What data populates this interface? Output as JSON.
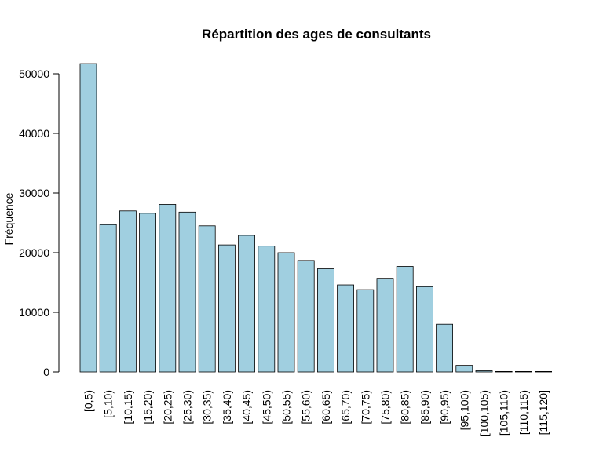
{
  "chart_data": {
    "type": "bar",
    "title": "Répartition des ages de consultants",
    "xlabel": "",
    "ylabel": "Fréquence",
    "ylim": [
      0,
      52000
    ],
    "yticks": [
      0,
      10000,
      20000,
      30000,
      40000,
      50000
    ],
    "ytick_labels": [
      "0",
      "10000",
      "20000",
      "30000",
      "40000",
      "50000"
    ],
    "categories": [
      "[0,5)",
      "[5,10)",
      "[10,15)",
      "[15,20)",
      "[20,25)",
      "[25,30)",
      "[30,35)",
      "[35,40)",
      "[40,45)",
      "[45,50)",
      "[50,55)",
      "[55,60)",
      "[60,65)",
      "[65,70)",
      "[70,75)",
      "[75,80)",
      "[80,85)",
      "[85,90)",
      "[90,95)",
      "[95,100)",
      "[100,105)",
      "[105,110)",
      "[110,115)",
      "[115,120]"
    ],
    "values": [
      51700,
      24700,
      27000,
      26600,
      28100,
      26800,
      24500,
      21300,
      22900,
      21100,
      20000,
      18700,
      17300,
      14600,
      13800,
      15700,
      17700,
      14300,
      8000,
      1100,
      200,
      50,
      20,
      10
    ],
    "bar_color": "#a0cfe0",
    "grid": false,
    "legend": "none"
  }
}
